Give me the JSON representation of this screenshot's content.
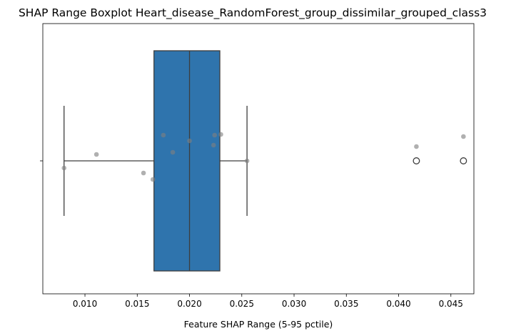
{
  "chart_data": {
    "type": "box",
    "title": "SHAP Range Boxplot Heart_disease_RandomForest_group_dissimilar_grouped_class3",
    "xlabel": "Feature SHAP Range (5-95 pctile)",
    "ylabel": "",
    "xlim": [
      0.00597,
      0.0472
    ],
    "xticks": [
      0.01,
      0.015,
      0.02,
      0.025,
      0.03,
      0.035,
      0.04,
      0.045
    ],
    "xtick_labels": [
      "0.010",
      "0.015",
      "0.020",
      "0.025",
      "0.030",
      "0.035",
      "0.040",
      "0.045"
    ],
    "grid": false,
    "orientation": "horizontal",
    "box": {
      "whisker_low": 0.008,
      "q1": 0.0166,
      "median": 0.02,
      "q3": 0.0229,
      "whisker_high": 0.0255,
      "color": "#2f74ad"
    },
    "outliers": [
      0.0417,
      0.0462
    ],
    "points": [
      {
        "x": 0.008,
        "jitter": -0.1
      },
      {
        "x": 0.0111,
        "jitter": 0.09
      },
      {
        "x": 0.0156,
        "jitter": -0.17
      },
      {
        "x": 0.0165,
        "jitter": -0.26
      },
      {
        "x": 0.0175,
        "jitter": 0.36
      },
      {
        "x": 0.0184,
        "jitter": 0.12
      },
      {
        "x": 0.02,
        "jitter": 0.28
      },
      {
        "x": 0.0223,
        "jitter": 0.22
      },
      {
        "x": 0.0224,
        "jitter": 0.36
      },
      {
        "x": 0.023,
        "jitter": 0.37
      },
      {
        "x": 0.0255,
        "jitter": 0.0
      },
      {
        "x": 0.0417,
        "jitter": 0.2
      },
      {
        "x": 0.0462,
        "jitter": 0.34
      }
    ],
    "point_color": "#7f7f7f"
  }
}
